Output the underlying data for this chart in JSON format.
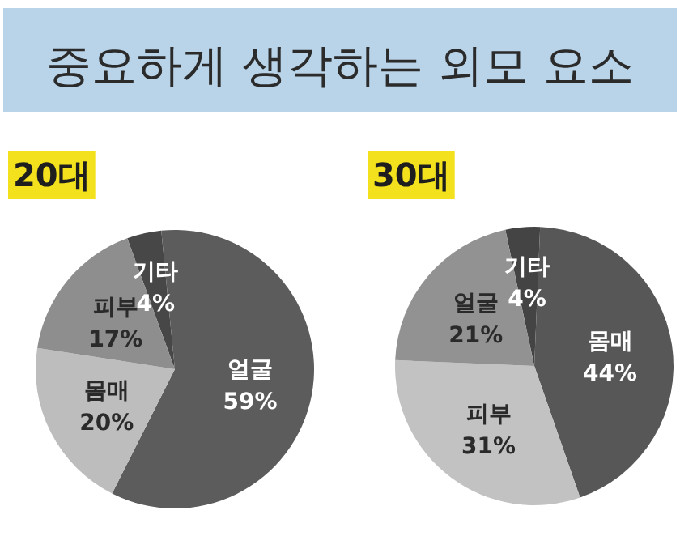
{
  "chart_data": [
    {
      "type": "pie",
      "title": "20대",
      "annotations": [
        "중요하게 생각하는 외모 요소"
      ],
      "categories": [
        "기타",
        "얼굴",
        "몸매",
        "피부"
      ],
      "values": [
        4,
        59,
        20,
        17
      ],
      "value_labels": [
        "4%",
        "59%",
        "20%",
        "17%"
      ],
      "colors": [
        "#474747",
        "#5c5c5c",
        "#bdbdbd",
        "#8e8e8e"
      ]
    },
    {
      "type": "pie",
      "title": "30대",
      "categories": [
        "기타",
        "몸매",
        "피부",
        "얼굴"
      ],
      "values": [
        4,
        44,
        31,
        21
      ],
      "value_labels": [
        "4%",
        "44%",
        "31%",
        "21%"
      ],
      "colors": [
        "#444444",
        "#575757",
        "#c2c2c2",
        "#929292"
      ]
    }
  ]
}
